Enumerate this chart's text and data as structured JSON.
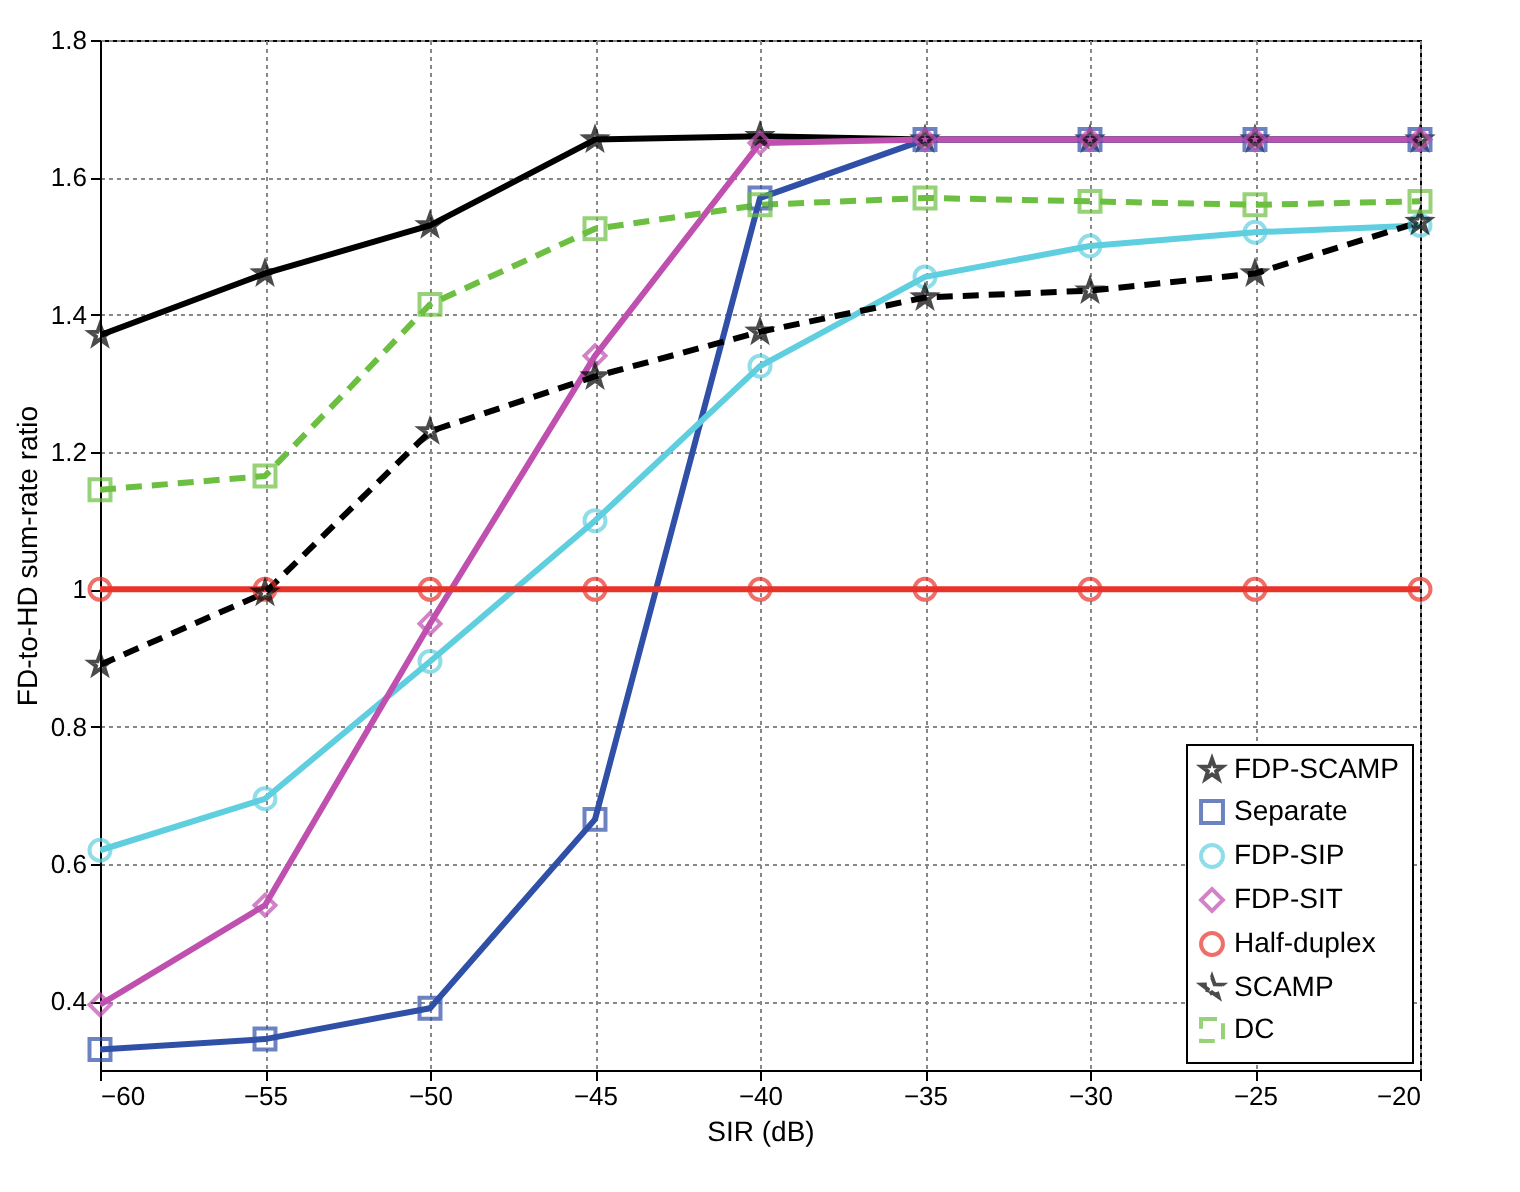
{
  "chart_data": {
    "type": "line",
    "xlabel": "SIR (dB)",
    "ylabel": "FD-to-HD sum-rate ratio",
    "x": [
      -60,
      -55,
      -50,
      -45,
      -40,
      -35,
      -30,
      -25,
      -20
    ],
    "xlim": [
      -60,
      -20
    ],
    "xticks": [
      -60,
      -55,
      -50,
      -45,
      -40,
      -35,
      -30,
      -25,
      -20
    ],
    "ylim": [
      0.3,
      1.8
    ],
    "yticks": [
      0.4,
      0.6,
      0.8,
      1,
      1.2,
      1.4,
      1.6,
      1.8
    ],
    "grid": true,
    "legend": "bottom right",
    "series": [
      {
        "name": "FDP-SCAMP",
        "color": "#000000",
        "marker": "star",
        "line_style": "solid",
        "values": [
          1.37,
          1.46,
          1.53,
          1.655,
          1.66,
          1.655,
          1.655,
          1.655,
          1.655
        ]
      },
      {
        "name": "Separate",
        "color": "#3050a8",
        "marker": "square",
        "line_style": "solid",
        "values": [
          0.33,
          0.345,
          0.39,
          0.665,
          1.57,
          1.655,
          1.655,
          1.655,
          1.655
        ]
      },
      {
        "name": "FDP-SIP",
        "color": "#5fcfdf",
        "marker": "circle",
        "line_style": "solid",
        "values": [
          0.62,
          0.695,
          0.895,
          1.1,
          1.325,
          1.455,
          1.5,
          1.52,
          1.53
        ]
      },
      {
        "name": "FDP-SIT",
        "color": "#c050b0",
        "marker": "diamond",
        "line_style": "solid",
        "values": [
          0.395,
          0.54,
          0.95,
          1.34,
          1.65,
          1.655,
          1.655,
          1.655,
          1.655
        ]
      },
      {
        "name": "Half-duplex",
        "color": "#e8322a",
        "marker": "circle",
        "line_style": "solid",
        "values": [
          1,
          1,
          1,
          1,
          1,
          1,
          1,
          1,
          1
        ]
      },
      {
        "name": "SCAMP",
        "color": "#000000",
        "marker": "star",
        "line_style": "dashed",
        "values": [
          0.89,
          0.995,
          1.23,
          1.31,
          1.375,
          1.425,
          1.435,
          1.46,
          1.535
        ]
      },
      {
        "name": "DC",
        "color": "#6cbf40",
        "marker": "square",
        "line_style": "dashed",
        "values": [
          1.145,
          1.165,
          1.415,
          1.525,
          1.56,
          1.57,
          1.565,
          1.56,
          1.565
        ]
      }
    ]
  }
}
